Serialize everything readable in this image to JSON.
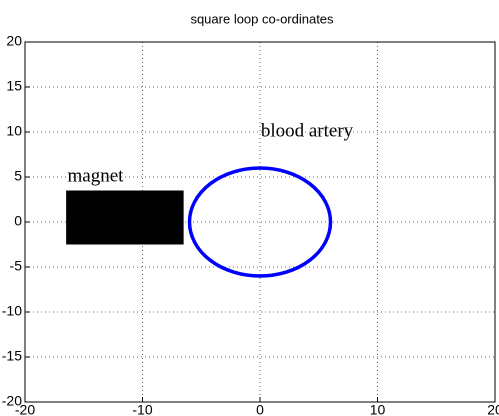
{
  "chart_data": {
    "type": "shapes",
    "title": "square loop co-ordinates",
    "xlim": [
      -20,
      20
    ],
    "ylim": [
      -20,
      20
    ],
    "xticks": [
      -20,
      -10,
      0,
      10,
      20
    ],
    "yticks": [
      -20,
      -15,
      -10,
      -5,
      0,
      5,
      10,
      15,
      20
    ],
    "grid": true,
    "shapes": [
      {
        "kind": "rectangle",
        "x": [
          -16.5,
          -6.5
        ],
        "y": [
          -2.5,
          3.5
        ],
        "color": "#000000"
      },
      {
        "kind": "ellipse",
        "cx": 0,
        "cy": 0,
        "rx": 6,
        "ry": 6,
        "color": "#0000ff"
      }
    ],
    "annotations": [
      {
        "text": "magnet",
        "x": -14,
        "y": 5
      },
      {
        "text": "blood artery",
        "x": 4,
        "y": 10
      }
    ]
  }
}
